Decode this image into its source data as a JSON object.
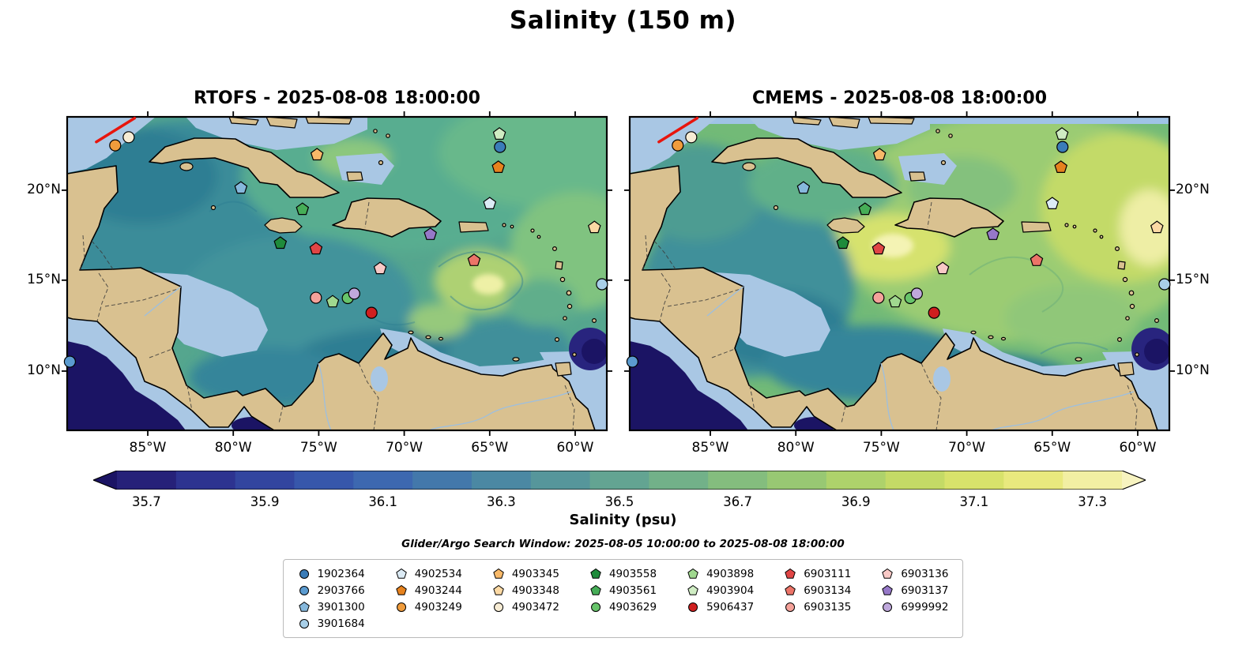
{
  "title": "Salinity (150 m)",
  "panels": [
    {
      "model": "RTOFS",
      "title": "RTOFS - 2025-08-08 18:00:00",
      "y_side": "left"
    },
    {
      "model": "CMEMS",
      "title": "CMEMS - 2025-08-08 18:00:00",
      "y_side": "right"
    }
  ],
  "axes": {
    "x_ticks": [
      {
        "label": "85°W",
        "f": 0.1494
      },
      {
        "label": "80°W",
        "f": 0.3078
      },
      {
        "label": "75°W",
        "f": 0.4662
      },
      {
        "label": "70°W",
        "f": 0.6246
      },
      {
        "label": "65°W",
        "f": 0.783
      },
      {
        "label": "60°W",
        "f": 0.9414
      }
    ],
    "y_ticks": [
      {
        "label": "20°N",
        "f": 0.234
      },
      {
        "label": "15°N",
        "f": 0.521
      },
      {
        "label": "10°N",
        "f": 0.811
      }
    ]
  },
  "colorbar": {
    "label": "Salinity (psu)",
    "under_color": "#1b1464",
    "over_color": "#f7f3c0",
    "segments": [
      "#262179",
      "#2d3390",
      "#32459f",
      "#3757ab",
      "#3d68b0",
      "#4378ab",
      "#4b88a3",
      "#56969b",
      "#63a492",
      "#72b189",
      "#84bd7e",
      "#98c873",
      "#aed26b",
      "#c4da66",
      "#d8e26b",
      "#e9e97e",
      "#f2efa3"
    ],
    "ticks": [
      {
        "label": "35.7",
        "f": 0.0294
      },
      {
        "label": "35.9",
        "f": 0.1471
      },
      {
        "label": "36.1",
        "f": 0.2647
      },
      {
        "label": "36.3",
        "f": 0.3824
      },
      {
        "label": "36.5",
        "f": 0.5
      },
      {
        "label": "36.7",
        "f": 0.6176
      },
      {
        "label": "36.9",
        "f": 0.7353
      },
      {
        "label": "37.1",
        "f": 0.8529
      },
      {
        "label": "37.3",
        "f": 0.9706
      }
    ]
  },
  "search_window": "Glider/Argo Search Window: 2025-08-05 10:00:00 to 2025-08-08 18:00:00",
  "legend": {
    "column_sizes": [
      4,
      3,
      3,
      3,
      3,
      3,
      3
    ]
  },
  "chart_data": {
    "type": "map",
    "variable": "Salinity (psu) at 150 m depth",
    "valid_time": "2025-08-08 18:00:00",
    "models": [
      "RTOFS",
      "CMEMS"
    ],
    "lon_tick_labels": [
      "85°W",
      "80°W",
      "75°W",
      "70°W",
      "65°W",
      "60°W"
    ],
    "lat_tick_labels": [
      "20°N",
      "15°N",
      "10°N"
    ],
    "colorbar_range": [
      35.65,
      37.35
    ],
    "contour_step": 0.1,
    "glider_color": "#e8150d",
    "glider_track": {
      "x1": 0.054,
      "y1": 0.08,
      "x2": 0.125,
      "y2": 0.004
    },
    "platforms": [
      {
        "id": "1902364",
        "shape": "circle",
        "color": "#3a7cb8",
        "fx": 0.802,
        "fy": 0.096
      },
      {
        "id": "2903766",
        "shape": "circle",
        "color": "#5b9bd0",
        "fx": 0.005,
        "fy": 0.781
      },
      {
        "id": "3901300",
        "shape": "pentagon",
        "color": "#86b8dc",
        "fx": 0.322,
        "fy": 0.227
      },
      {
        "id": "3901684",
        "shape": "circle",
        "color": "#a8cfe8",
        "fx": 0.991,
        "fy": 0.534
      },
      {
        "id": "4902534",
        "shape": "pentagon",
        "color": "#dcebf5",
        "fx": 0.783,
        "fy": 0.277
      },
      {
        "id": "4903244",
        "shape": "pentagon",
        "color": "#e6821e",
        "fx": 0.799,
        "fy": 0.161
      },
      {
        "id": "4903249",
        "shape": "circle",
        "color": "#f09c3c",
        "fx": 0.089,
        "fy": 0.091
      },
      {
        "id": "4903345",
        "shape": "pentagon",
        "color": "#f8b969",
        "fx": 0.463,
        "fy": 0.121
      },
      {
        "id": "4903348",
        "shape": "pentagon",
        "color": "#fcd9a4",
        "fx": 0.977,
        "fy": 0.353
      },
      {
        "id": "4903472",
        "shape": "circle",
        "color": "#f7ecd4",
        "fx": 0.114,
        "fy": 0.065
      },
      {
        "id": "4903558",
        "shape": "pentagon",
        "color": "#1f8b3b",
        "fx": 0.395,
        "fy": 0.403
      },
      {
        "id": "4903561",
        "shape": "pentagon",
        "color": "#46ad57",
        "fx": 0.436,
        "fy": 0.295
      },
      {
        "id": "4903629",
        "shape": "circle",
        "color": "#67c46a",
        "fx": 0.52,
        "fy": 0.578
      },
      {
        "id": "4903898",
        "shape": "pentagon",
        "color": "#a0d88f",
        "fx": 0.492,
        "fy": 0.59
      },
      {
        "id": "4903904",
        "shape": "pentagon",
        "color": "#cfecc3",
        "fx": 0.801,
        "fy": 0.055
      },
      {
        "id": "5906437",
        "shape": "circle",
        "color": "#cf1f1f",
        "fx": 0.564,
        "fy": 0.625
      },
      {
        "id": "6903111",
        "shape": "pentagon",
        "color": "#e04545",
        "fx": 0.461,
        "fy": 0.421
      },
      {
        "id": "6903134",
        "shape": "pentagon",
        "color": "#ec7468",
        "fx": 0.754,
        "fy": 0.458
      },
      {
        "id": "6903135",
        "shape": "circle",
        "color": "#f5a29a",
        "fx": 0.461,
        "fy": 0.577
      },
      {
        "id": "6903136",
        "shape": "pentagon",
        "color": "#f9c9c6",
        "fx": 0.58,
        "fy": 0.484
      },
      {
        "id": "6903137",
        "shape": "pentagon",
        "color": "#9678c8",
        "fx": 0.673,
        "fy": 0.375
      },
      {
        "id": "6999992",
        "shape": "circle",
        "color": "#bfa8dc",
        "fx": 0.532,
        "fy": 0.564
      }
    ]
  }
}
